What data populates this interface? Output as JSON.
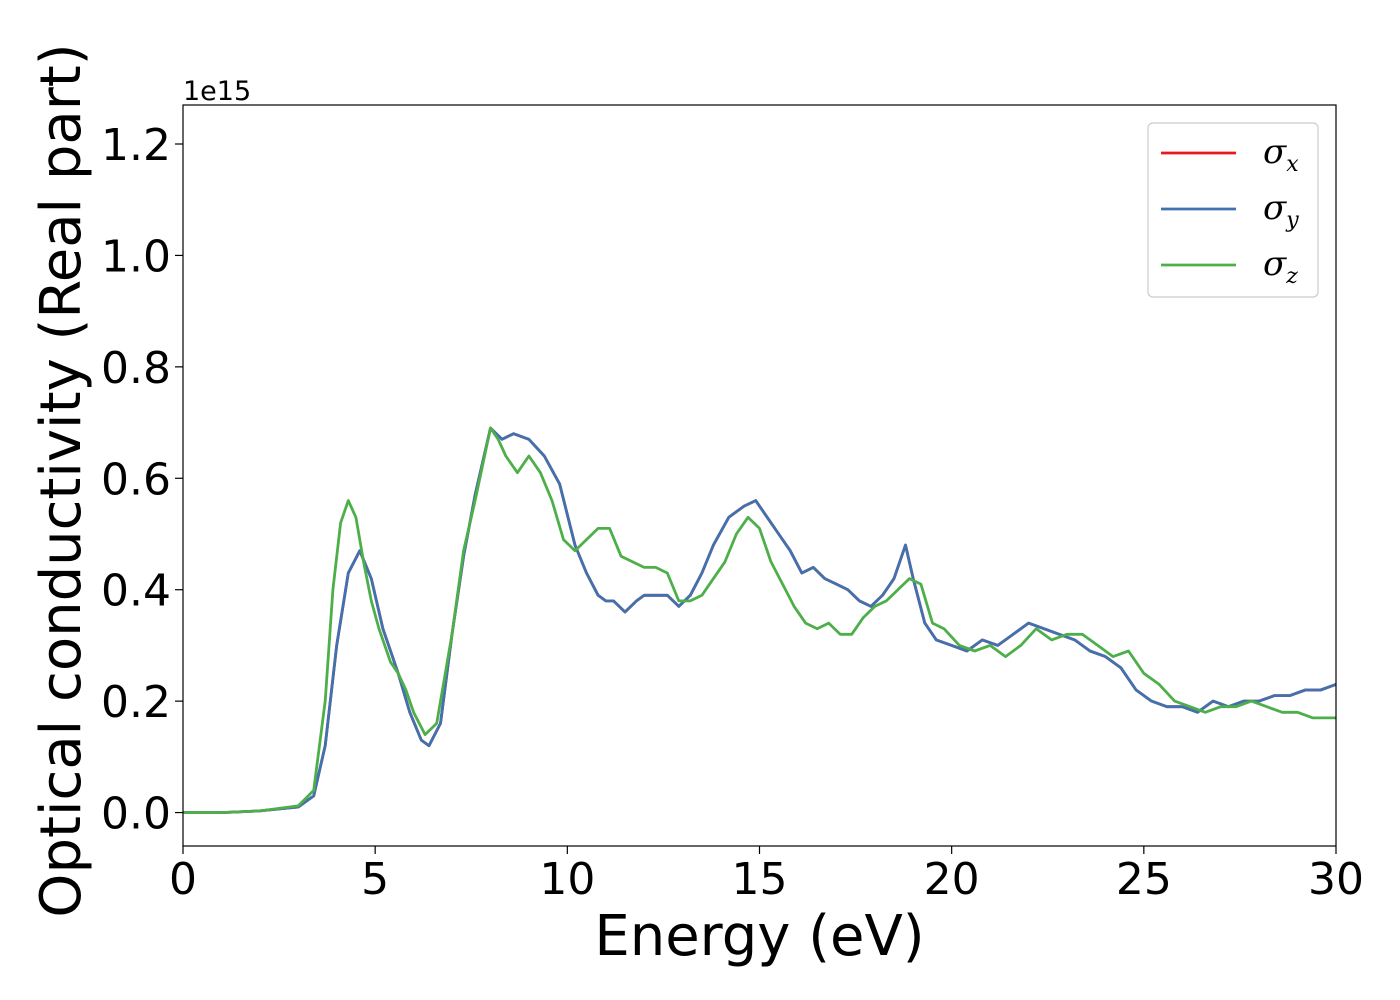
{
  "chart_data": {
    "type": "line",
    "xlabel": "Energy (eV)",
    "ylabel": "Optical conductivity (Real part)",
    "y_offset_text": "1e15",
    "xlim": [
      0,
      30
    ],
    "ylim": [
      -0.06,
      1.27
    ],
    "x_ticks": [
      0,
      5,
      10,
      15,
      20,
      25,
      30
    ],
    "y_ticks": [
      0.0,
      0.2,
      0.4,
      0.6,
      0.8,
      1.0,
      1.2
    ],
    "x_tick_labels": [
      "0",
      "5",
      "10",
      "15",
      "20",
      "25",
      "30"
    ],
    "y_tick_labels": [
      "0.0",
      "0.2",
      "0.4",
      "0.6",
      "0.8",
      "1.0",
      "1.2"
    ],
    "grid": false,
    "legend_position": "top-right",
    "series": [
      {
        "name": "σx",
        "legend_symbol": "σ",
        "legend_sub": "x",
        "color": "#e41a1c",
        "x": [
          0,
          1,
          2,
          3,
          3.4,
          3.7,
          4.0,
          4.3,
          4.6,
          4.9,
          5.2,
          5.6,
          5.9,
          6.2,
          6.4,
          6.7,
          7.0,
          7.3,
          7.6,
          8.0,
          8.3,
          8.6,
          9.0,
          9.4,
          9.8,
          10.2,
          10.5,
          10.8,
          11.0,
          11.2,
          11.5,
          11.8,
          12.0,
          12.3,
          12.6,
          12.9,
          13.2,
          13.5,
          13.8,
          14.2,
          14.6,
          14.9,
          15.2,
          15.5,
          15.8,
          16.1,
          16.4,
          16.7,
          17.0,
          17.3,
          17.6,
          17.9,
          18.2,
          18.5,
          18.8,
          19.0,
          19.3,
          19.6,
          20.0,
          20.4,
          20.8,
          21.2,
          21.6,
          22.0,
          22.4,
          22.8,
          23.2,
          23.6,
          24.0,
          24.4,
          24.8,
          25.2,
          25.6,
          26.0,
          26.4,
          26.8,
          27.2,
          27.6,
          28.0,
          28.4,
          28.8,
          29.2,
          29.6,
          30.0
        ],
        "values": [
          0.0,
          0.0,
          0.003,
          0.01,
          0.03,
          0.12,
          0.3,
          0.43,
          0.47,
          0.42,
          0.33,
          0.25,
          0.18,
          0.13,
          0.12,
          0.16,
          0.32,
          0.46,
          0.57,
          0.69,
          0.67,
          0.68,
          0.67,
          0.64,
          0.59,
          0.48,
          0.43,
          0.39,
          0.38,
          0.38,
          0.36,
          0.38,
          0.39,
          0.39,
          0.39,
          0.37,
          0.39,
          0.43,
          0.48,
          0.53,
          0.55,
          0.56,
          0.53,
          0.5,
          0.47,
          0.43,
          0.44,
          0.42,
          0.41,
          0.4,
          0.38,
          0.37,
          0.39,
          0.42,
          0.48,
          0.42,
          0.34,
          0.31,
          0.3,
          0.29,
          0.31,
          0.3,
          0.32,
          0.34,
          0.33,
          0.32,
          0.31,
          0.29,
          0.28,
          0.26,
          0.22,
          0.2,
          0.19,
          0.19,
          0.18,
          0.2,
          0.19,
          0.2,
          0.2,
          0.21,
          0.21,
          0.22,
          0.22,
          0.23
        ]
      },
      {
        "name": "σy",
        "legend_symbol": "σ",
        "legend_sub": "y",
        "color": "#3f72af",
        "x": [
          0,
          1,
          2,
          3,
          3.4,
          3.7,
          4.0,
          4.3,
          4.6,
          4.9,
          5.2,
          5.6,
          5.9,
          6.2,
          6.4,
          6.7,
          7.0,
          7.3,
          7.6,
          8.0,
          8.3,
          8.6,
          9.0,
          9.4,
          9.8,
          10.2,
          10.5,
          10.8,
          11.0,
          11.2,
          11.5,
          11.8,
          12.0,
          12.3,
          12.6,
          12.9,
          13.2,
          13.5,
          13.8,
          14.2,
          14.6,
          14.9,
          15.2,
          15.5,
          15.8,
          16.1,
          16.4,
          16.7,
          17.0,
          17.3,
          17.6,
          17.9,
          18.2,
          18.5,
          18.8,
          19.0,
          19.3,
          19.6,
          20.0,
          20.4,
          20.8,
          21.2,
          21.6,
          22.0,
          22.4,
          22.8,
          23.2,
          23.6,
          24.0,
          24.4,
          24.8,
          25.2,
          25.6,
          26.0,
          26.4,
          26.8,
          27.2,
          27.6,
          28.0,
          28.4,
          28.8,
          29.2,
          29.6,
          30.0
        ],
        "values": [
          0.0,
          0.0,
          0.003,
          0.01,
          0.03,
          0.12,
          0.3,
          0.43,
          0.47,
          0.42,
          0.33,
          0.25,
          0.18,
          0.13,
          0.12,
          0.16,
          0.32,
          0.46,
          0.57,
          0.69,
          0.67,
          0.68,
          0.67,
          0.64,
          0.59,
          0.48,
          0.43,
          0.39,
          0.38,
          0.38,
          0.36,
          0.38,
          0.39,
          0.39,
          0.39,
          0.37,
          0.39,
          0.43,
          0.48,
          0.53,
          0.55,
          0.56,
          0.53,
          0.5,
          0.47,
          0.43,
          0.44,
          0.42,
          0.41,
          0.4,
          0.38,
          0.37,
          0.39,
          0.42,
          0.48,
          0.42,
          0.34,
          0.31,
          0.3,
          0.29,
          0.31,
          0.3,
          0.32,
          0.34,
          0.33,
          0.32,
          0.31,
          0.29,
          0.28,
          0.26,
          0.22,
          0.2,
          0.19,
          0.19,
          0.18,
          0.2,
          0.19,
          0.2,
          0.2,
          0.21,
          0.21,
          0.22,
          0.22,
          0.23
        ]
      },
      {
        "name": "σz",
        "legend_symbol": "σ",
        "legend_sub": "z",
        "color": "#4daf4a",
        "x": [
          0,
          1,
          2,
          3,
          3.4,
          3.7,
          3.9,
          4.1,
          4.3,
          4.5,
          4.7,
          4.9,
          5.1,
          5.4,
          5.6,
          5.8,
          6.0,
          6.3,
          6.6,
          7.0,
          7.3,
          7.6,
          8.0,
          8.2,
          8.4,
          8.7,
          9.0,
          9.3,
          9.6,
          9.9,
          10.2,
          10.5,
          10.8,
          11.1,
          11.4,
          11.7,
          12.0,
          12.3,
          12.6,
          12.9,
          13.2,
          13.5,
          13.8,
          14.1,
          14.4,
          14.7,
          15.0,
          15.3,
          15.6,
          15.9,
          16.2,
          16.5,
          16.8,
          17.1,
          17.4,
          17.7,
          18.0,
          18.3,
          18.6,
          18.9,
          19.2,
          19.5,
          19.8,
          20.2,
          20.6,
          21.0,
          21.4,
          21.8,
          22.2,
          22.6,
          23.0,
          23.4,
          23.8,
          24.2,
          24.6,
          25.0,
          25.4,
          25.8,
          26.2,
          26.6,
          27.0,
          27.4,
          27.8,
          28.2,
          28.6,
          29.0,
          29.4,
          29.8,
          30.0
        ],
        "values": [
          0.0,
          0.0,
          0.003,
          0.012,
          0.04,
          0.2,
          0.4,
          0.52,
          0.56,
          0.53,
          0.45,
          0.38,
          0.33,
          0.27,
          0.25,
          0.22,
          0.18,
          0.14,
          0.16,
          0.32,
          0.47,
          0.56,
          0.69,
          0.67,
          0.64,
          0.61,
          0.64,
          0.61,
          0.56,
          0.49,
          0.47,
          0.49,
          0.51,
          0.51,
          0.46,
          0.45,
          0.44,
          0.44,
          0.43,
          0.38,
          0.38,
          0.39,
          0.42,
          0.45,
          0.5,
          0.53,
          0.51,
          0.45,
          0.41,
          0.37,
          0.34,
          0.33,
          0.34,
          0.32,
          0.32,
          0.35,
          0.37,
          0.38,
          0.4,
          0.42,
          0.41,
          0.34,
          0.33,
          0.3,
          0.29,
          0.3,
          0.28,
          0.3,
          0.33,
          0.31,
          0.32,
          0.32,
          0.3,
          0.28,
          0.29,
          0.25,
          0.23,
          0.2,
          0.19,
          0.18,
          0.19,
          0.19,
          0.2,
          0.19,
          0.18,
          0.18,
          0.17,
          0.17,
          0.17
        ]
      }
    ]
  }
}
